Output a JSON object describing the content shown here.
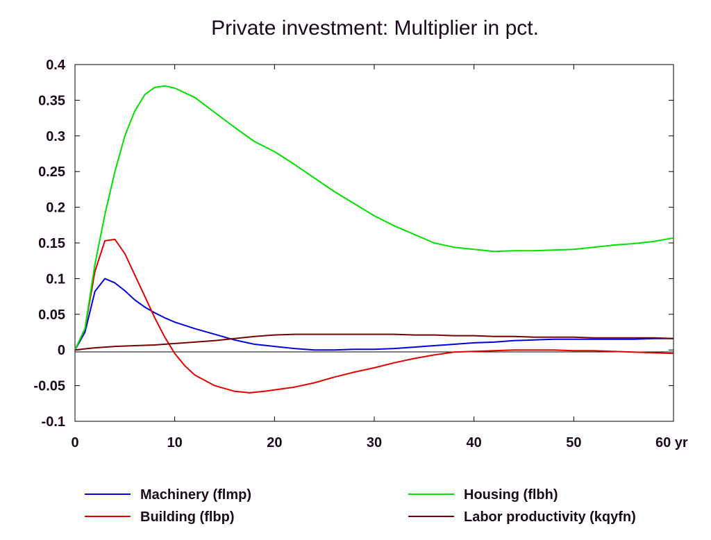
{
  "chart_data": {
    "type": "line",
    "title": "Private investment: Multiplier in pct.",
    "xlabel": "",
    "ylabel": "",
    "x_unit_label": "yr",
    "xlim": [
      0,
      60
    ],
    "ylim": [
      -0.1,
      0.4
    ],
    "x_ticks": [
      0,
      10,
      20,
      30,
      40,
      50,
      60
    ],
    "x_tick_labels": [
      "0",
      "10",
      "20",
      "30",
      "40",
      "50",
      "60"
    ],
    "y_ticks": [
      -0.1,
      -0.05,
      0,
      0.05,
      0.1,
      0.15,
      0.2,
      0.25,
      0.3,
      0.35,
      0.4
    ],
    "y_tick_labels": [
      "-0.1",
      "-0.05",
      "0",
      "0.05",
      "0.1",
      "0.15",
      "0.2",
      "0.25",
      "0.3",
      "0.35",
      "0.4"
    ],
    "grid": false,
    "zero_line": true,
    "legend_position": "bottom",
    "series": [
      {
        "name": "Machinery (flmp)",
        "color": "#0000dd",
        "x": [
          0,
          1,
          2,
          3,
          4,
          5,
          6,
          7,
          8,
          9,
          10,
          12,
          14,
          16,
          18,
          20,
          22,
          24,
          26,
          28,
          30,
          32,
          34,
          36,
          38,
          40,
          42,
          44,
          46,
          48,
          50,
          52,
          54,
          56,
          58,
          60
        ],
        "y": [
          0,
          0.025,
          0.082,
          0.1,
          0.094,
          0.083,
          0.07,
          0.06,
          0.052,
          0.045,
          0.039,
          0.03,
          0.022,
          0.014,
          0.008,
          0.005,
          0.002,
          0.0,
          0.0,
          0.001,
          0.001,
          0.002,
          0.004,
          0.006,
          0.008,
          0.01,
          0.011,
          0.013,
          0.014,
          0.015,
          0.015,
          0.015,
          0.015,
          0.015,
          0.016,
          0.016
        ]
      },
      {
        "name": "Building (flbp)",
        "color": "#e00000",
        "x": [
          0,
          1,
          2,
          3,
          4,
          5,
          6,
          7,
          8,
          9,
          10,
          11,
          12,
          14,
          16,
          17.5,
          19,
          20,
          22,
          24,
          26,
          28,
          30,
          32,
          34,
          36,
          38,
          40,
          42,
          44,
          46,
          48,
          50,
          52,
          54,
          56,
          58,
          60
        ],
        "y": [
          0,
          0.03,
          0.11,
          0.153,
          0.155,
          0.135,
          0.105,
          0.075,
          0.045,
          0.018,
          -0.005,
          -0.022,
          -0.035,
          -0.05,
          -0.058,
          -0.06,
          -0.058,
          -0.056,
          -0.052,
          -0.046,
          -0.038,
          -0.031,
          -0.025,
          -0.018,
          -0.012,
          -0.007,
          -0.003,
          -0.002,
          -0.001,
          0.0,
          0.0,
          0.0,
          -0.001,
          -0.001,
          -0.002,
          -0.003,
          -0.004,
          -0.005
        ]
      },
      {
        "name": "Housing (flbh)",
        "color": "#00e000",
        "x": [
          0,
          1,
          2,
          3,
          4,
          5,
          6,
          7,
          8,
          9,
          10,
          12,
          14,
          16,
          18,
          20,
          22,
          24,
          26,
          28,
          30,
          32,
          34,
          36,
          38,
          40,
          42,
          44,
          46,
          48,
          50,
          52,
          54,
          56,
          58,
          60
        ],
        "y": [
          0,
          0.03,
          0.12,
          0.19,
          0.25,
          0.3,
          0.335,
          0.358,
          0.368,
          0.37,
          0.367,
          0.354,
          0.333,
          0.312,
          0.292,
          0.278,
          0.26,
          0.241,
          0.222,
          0.205,
          0.188,
          0.174,
          0.162,
          0.15,
          0.144,
          0.141,
          0.138,
          0.139,
          0.139,
          0.14,
          0.141,
          0.144,
          0.147,
          0.149,
          0.152,
          0.157
        ]
      },
      {
        "name": "Labor productivity (kqyfn)",
        "color": "#7a0000",
        "x": [
          0,
          2,
          4,
          6,
          8,
          10,
          12,
          14,
          16,
          18,
          20,
          22,
          24,
          26,
          28,
          30,
          32,
          34,
          36,
          38,
          40,
          42,
          44,
          46,
          48,
          50,
          52,
          54,
          56,
          58,
          60
        ],
        "y": [
          0,
          0.003,
          0.005,
          0.006,
          0.007,
          0.009,
          0.011,
          0.013,
          0.016,
          0.019,
          0.021,
          0.022,
          0.022,
          0.022,
          0.022,
          0.022,
          0.022,
          0.021,
          0.021,
          0.02,
          0.02,
          0.019,
          0.019,
          0.018,
          0.018,
          0.018,
          0.017,
          0.017,
          0.017,
          0.017,
          0.016
        ]
      }
    ]
  }
}
